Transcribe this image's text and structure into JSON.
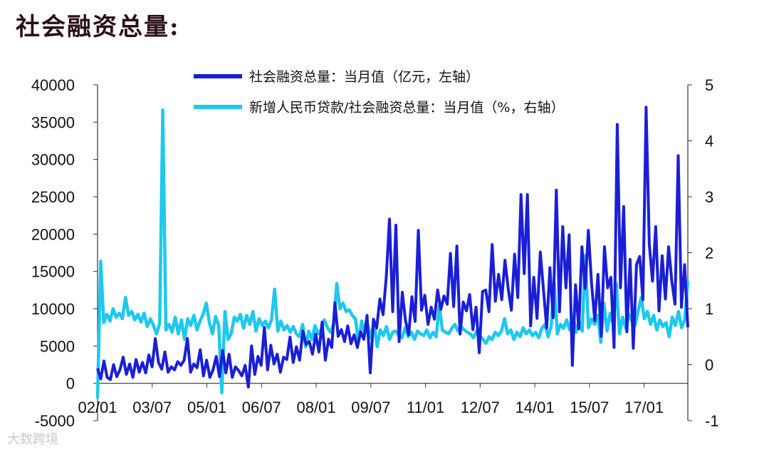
{
  "title": "社会融资总量:",
  "watermark": "大数跨境",
  "chart_data": {
    "type": "line",
    "x_tick_labels": [
      "02/01",
      "03/07",
      "05/01",
      "06/07",
      "08/01",
      "09/07",
      "11/01",
      "12/07",
      "14/01",
      "15/07",
      "17/01"
    ],
    "y_left": {
      "ticks": [
        40000,
        35000,
        30000,
        25000,
        20000,
        15000,
        10000,
        5000,
        0,
        -5000
      ],
      "ylim": [
        -5000,
        40000
      ]
    },
    "y_right": {
      "ticks": [
        5,
        4,
        3,
        2,
        1,
        0,
        -1
      ],
      "ylim": [
        -1,
        5
      ]
    },
    "legend_position": "top",
    "series": [
      {
        "name": "社会融资总量：当月值（亿元，左轴）",
        "axis": "left",
        "color": "#1a1fd6",
        "values": [
          2000,
          600,
          3000,
          800,
          500,
          2500,
          900,
          1800,
          3500,
          1200,
          2600,
          800,
          3200,
          1500,
          2800,
          1400,
          3800,
          2200,
          6000,
          2800,
          1900,
          4200,
          1500,
          2200,
          1800,
          2900,
          2400,
          3100,
          6000,
          1500,
          2600,
          2100,
          4500,
          1000,
          3100,
          800,
          1800,
          3600,
          900,
          4400,
          1400,
          3900,
          800,
          2200,
          1700,
          1000,
          2400,
          -500,
          5000,
          1200,
          3600,
          2400,
          7500,
          1800,
          5100,
          2600,
          3900,
          1500,
          3500,
          3200,
          6200,
          2800,
          4900,
          3100,
          7000,
          5200,
          5600,
          3900,
          6600,
          4200,
          8200,
          3100,
          5900,
          4800,
          10800,
          6300,
          7200,
          5600,
          7700,
          5300,
          6500,
          4800,
          6900,
          5900,
          9100,
          1400,
          8600,
          7400,
          11300,
          9200,
          14300,
          22000,
          9600,
          21200,
          5600,
          12200,
          8400,
          6500,
          11600,
          8300,
          20500,
          9800,
          11800,
          7900,
          10200,
          8600,
          12500,
          9900,
          11700,
          10600,
          17400,
          10300,
          18400,
          6600,
          10900,
          9700,
          11900,
          7200,
          10200,
          4100,
          12300,
          12500,
          9600,
          18600,
          11000,
          14600,
          11200,
          16500,
          12700,
          9800,
          17300,
          11500,
          25300,
          14700,
          25300,
          7700,
          14200,
          8700,
          17600,
          12500,
          7400,
          15500,
          8800,
          25900,
          9600,
          21000,
          12800,
          19900,
          2400,
          13200,
          7300,
          18300,
          12700,
          20500,
          13400,
          8400,
          14600,
          6300,
          18300,
          12800,
          14200,
          4800,
          34700,
          12800,
          23700,
          6900,
          16600,
          4700,
          15900,
          17000,
          11200,
          37000,
          18600,
          13700,
          21000,
          9700,
          17100,
          11300,
          18300,
          13700,
          10600,
          30500,
          10200,
          15900,
          7500
        ],
        "note": "values read approximately from the plot"
      },
      {
        "name": "新增人民币贷款/社会融资总量：当月值（%，右轴）",
        "axis": "right",
        "color": "#1ec8ee",
        "values": [
          -0.6,
          1.85,
          0.75,
          0.9,
          0.78,
          1.0,
          0.85,
          0.92,
          0.82,
          1.2,
          0.88,
          0.95,
          0.8,
          0.9,
          0.76,
          0.92,
          0.68,
          0.82,
          0.7,
          0.55,
          0.74,
          4.55,
          0.62,
          0.72,
          0.58,
          0.85,
          0.55,
          0.8,
          0.45,
          0.82,
          0.7,
          0.88,
          0.62,
          0.78,
          0.9,
          1.1,
          0.75,
          0.55,
          0.86,
          0.7,
          -0.5,
          0.95,
          0.45,
          0.55,
          0.85,
          0.78,
          0.9,
          0.65,
          0.88,
          0.72,
          0.95,
          0.6,
          0.82,
          0.7,
          0.78,
          0.66,
          0.8,
          1.35,
          0.6,
          0.78,
          0.62,
          0.7,
          0.58,
          0.68,
          0.55,
          0.5,
          0.72,
          0.32,
          0.6,
          0.45,
          0.7,
          0.55,
          0.62,
          0.8,
          0.66,
          0.58,
          0.72,
          1.45,
          1.0,
          1.1,
          0.95,
          0.98,
          0.88,
          0.82,
          0.4,
          0.78,
          0.55,
          0.7,
          0.48,
          0.75,
          0.32,
          0.62,
          0.52,
          0.68,
          0.45,
          0.58,
          0.6,
          0.52,
          0.48,
          0.66,
          0.5,
          0.58,
          0.45,
          0.6,
          0.55,
          0.52,
          0.62,
          0.48,
          0.58,
          0.5,
          1.05,
          0.62,
          0.58,
          0.55,
          0.65,
          0.72,
          0.6,
          0.68,
          0.62,
          0.58,
          0.55,
          0.48,
          0.6,
          0.52,
          0.46,
          0.38,
          0.5,
          0.45,
          0.58,
          0.52,
          0.6,
          0.82,
          0.55,
          0.62,
          0.45,
          0.58,
          0.5,
          0.66,
          0.55,
          0.62,
          0.52,
          0.58,
          0.48,
          0.65,
          0.72,
          0.5,
          0.68,
          1.45,
          0.55,
          0.72,
          0.65,
          0.8,
          0.62,
          0.9,
          0.58,
          0.78,
          0.6,
          1.95,
          0.66,
          0.82,
          0.72,
          0.88,
          0.4,
          1.1,
          0.6,
          0.92,
          0.72,
          1.45,
          0.55,
          0.85,
          0.65,
          0.9,
          0.78,
          0.7,
          0.96,
          1.2,
          0.82,
          0.95,
          0.72,
          0.88,
          0.62,
          0.8,
          0.68,
          0.75,
          0.5,
          0.85,
          0.7,
          0.95,
          0.66,
          0.8,
          1.5
        ],
        "note": "values read approximately from the plot"
      }
    ]
  }
}
